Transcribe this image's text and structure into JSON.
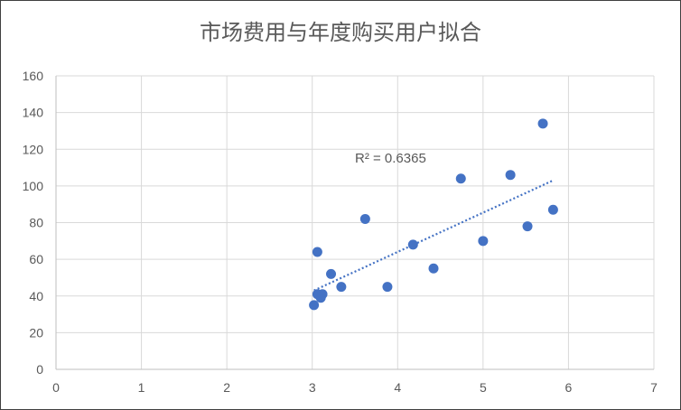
{
  "chart_data": {
    "type": "scatter",
    "title": "市场费用与年度购买用户拟合",
    "xlabel": "",
    "ylabel": "",
    "xlim": [
      0,
      7
    ],
    "ylim": [
      0,
      160
    ],
    "xticks": [
      "0",
      "1",
      "2",
      "3",
      "4",
      "5",
      "6",
      "7"
    ],
    "yticks": [
      "0",
      "20",
      "40",
      "60",
      "80",
      "100",
      "120",
      "140",
      "160"
    ],
    "grid": true,
    "legend": "none",
    "series": [
      {
        "points": [
          {
            "x": 3.02,
            "y": 35
          },
          {
            "x": 3.06,
            "y": 64
          },
          {
            "x": 3.06,
            "y": 41
          },
          {
            "x": 3.1,
            "y": 39
          },
          {
            "x": 3.12,
            "y": 41
          },
          {
            "x": 3.22,
            "y": 52
          },
          {
            "x": 3.34,
            "y": 45
          },
          {
            "x": 3.62,
            "y": 82
          },
          {
            "x": 3.88,
            "y": 45
          },
          {
            "x": 4.18,
            "y": 68
          },
          {
            "x": 4.42,
            "y": 55
          },
          {
            "x": 4.74,
            "y": 104
          },
          {
            "x": 5.0,
            "y": 70
          },
          {
            "x": 5.32,
            "y": 106
          },
          {
            "x": 5.52,
            "y": 78
          },
          {
            "x": 5.7,
            "y": 134
          },
          {
            "x": 5.82,
            "y": 87
          }
        ]
      }
    ],
    "trendline": {
      "type": "linear",
      "x_start": 3.02,
      "y_start": 43,
      "x_end": 5.82,
      "y_end": 103,
      "label": "R² = 0.6365"
    },
    "colors": {
      "points": "#4472c4",
      "trendline": "#4472c4",
      "grid": "#d9d9d9",
      "text": "#595959"
    }
  }
}
